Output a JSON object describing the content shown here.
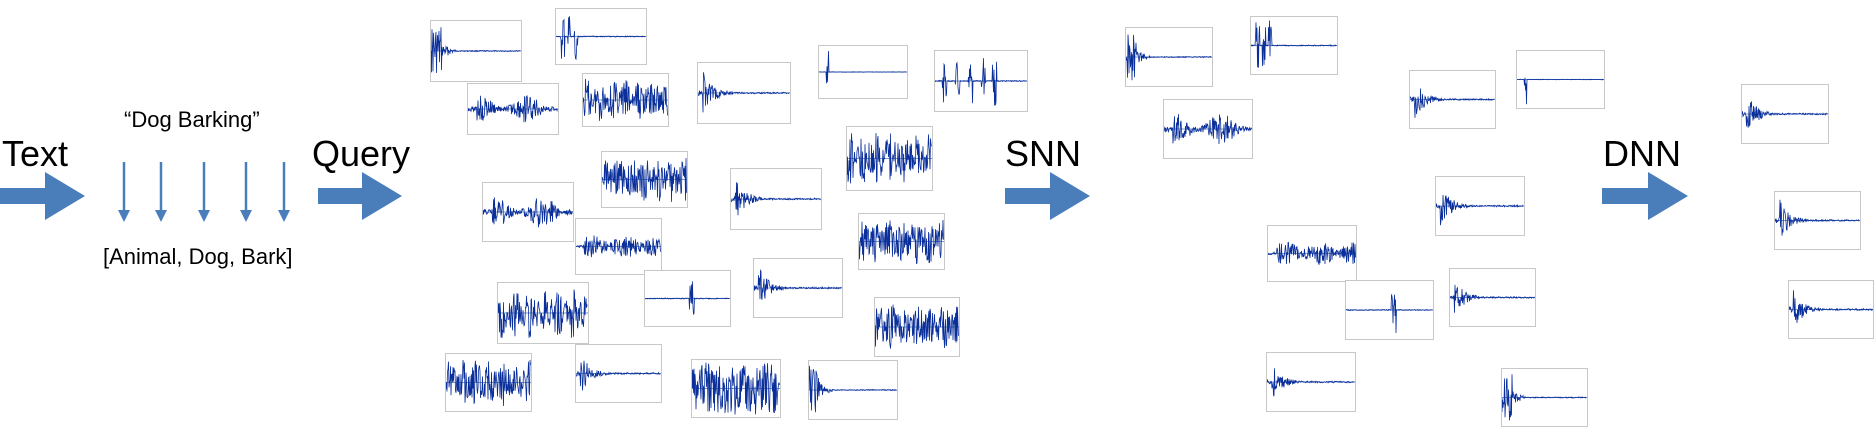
{
  "stages": {
    "text": "Text",
    "query": "Query",
    "snn": "SNN",
    "dnn": "DNN"
  },
  "query_text": "“Dog Barking”",
  "tokens_text": "[Animal, Dog, Bark]",
  "colors": {
    "arrow": "#4a7ebb",
    "waveform": "#0a2f9a",
    "waveform_line": "#4a78c8",
    "frame": "#c8c8c8"
  },
  "icons": {
    "stage_arrow": "right-arrow-icon",
    "token_arrow": "down-arrow-icon",
    "waveform": "waveform-plot-icon"
  }
}
